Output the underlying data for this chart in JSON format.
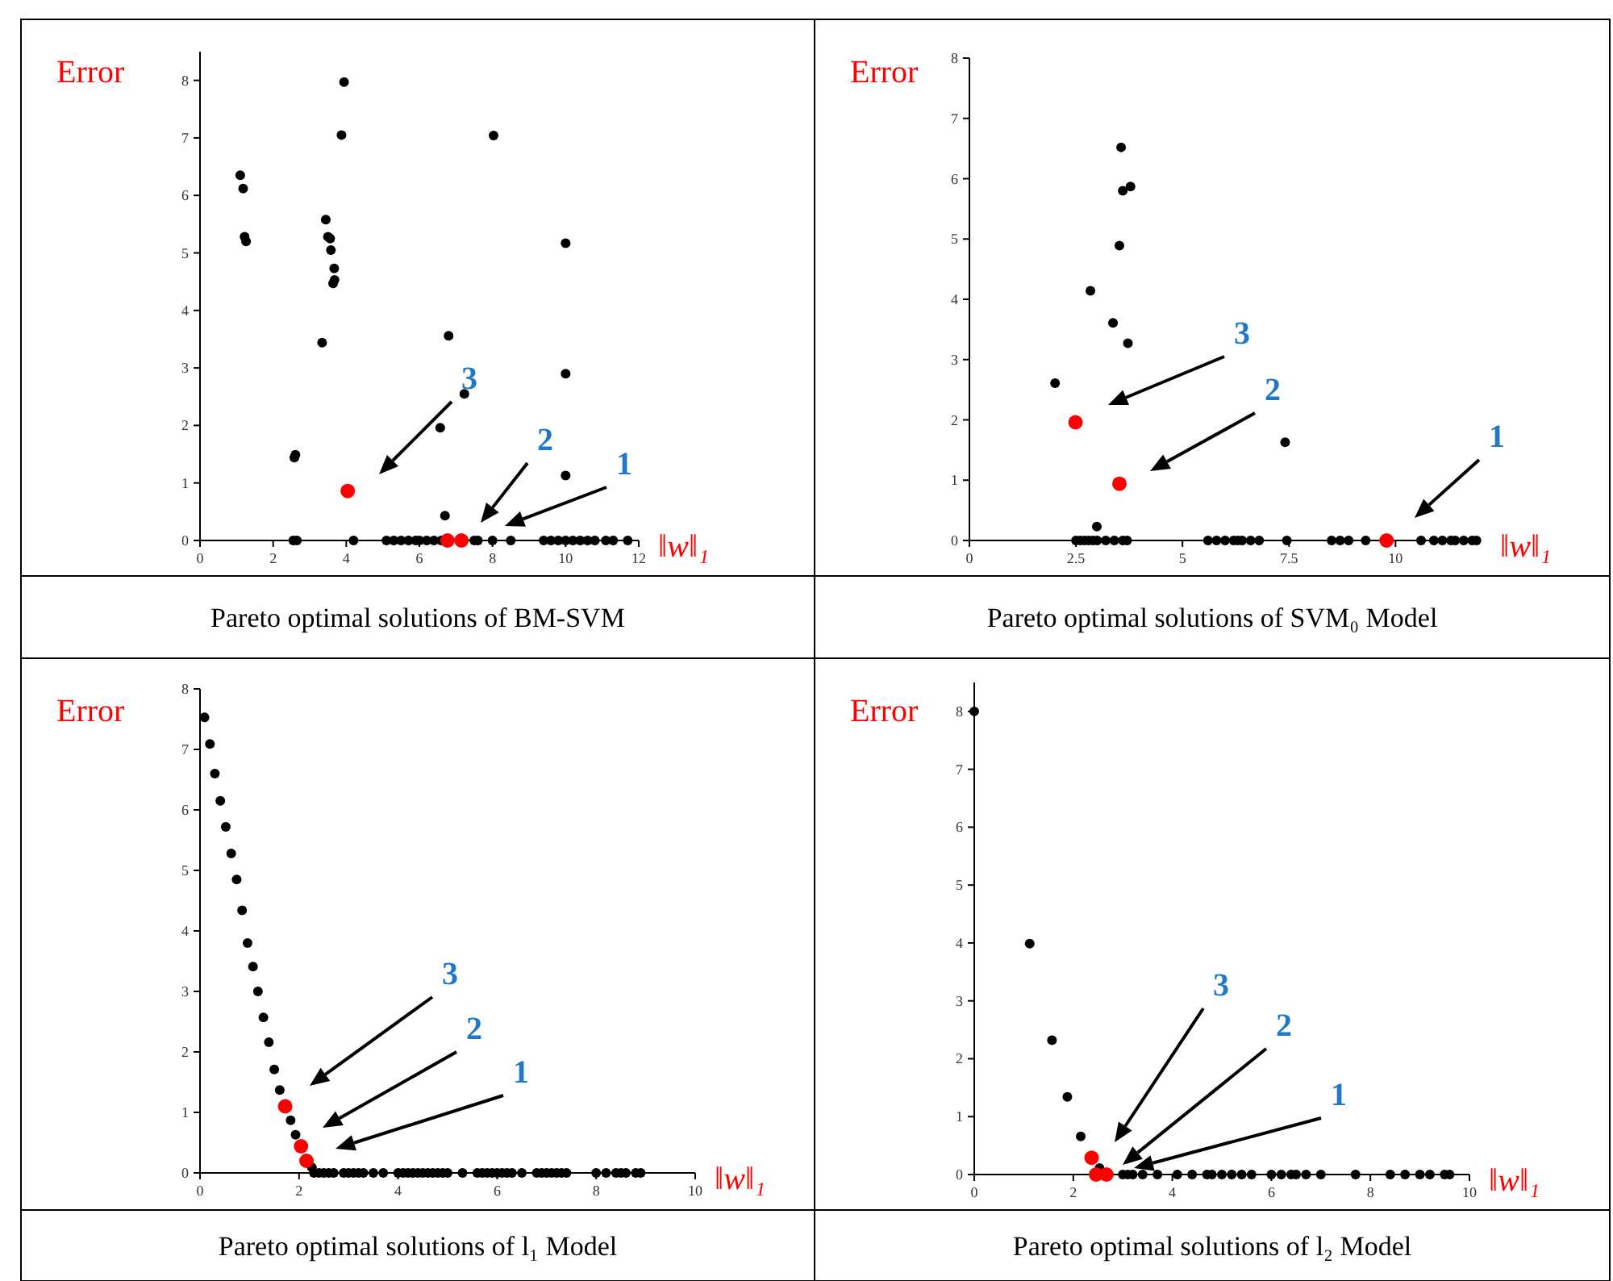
{
  "chart_data": [
    {
      "type": "scatter",
      "title": "Pareto optimal solutions of BM-SVM",
      "xlabel": "‖w‖₁",
      "ylabel": "Error",
      "xlim": [
        0,
        12
      ],
      "ylim": [
        0,
        8.5
      ],
      "xticks": [
        0,
        2,
        4,
        6,
        8,
        10,
        12
      ],
      "yticks": [
        0,
        1,
        2,
        3,
        4,
        5,
        6,
        7,
        8
      ],
      "marker": "circle",
      "grid": false,
      "series": [
        {
          "color": "#000000",
          "x": [
            1.1,
            1.18,
            1.22,
            1.26,
            3.94,
            3.87,
            8.03,
            3.44,
            3.5,
            3.56,
            3.58,
            3.67,
            3.68,
            3.64,
            3.34,
            6.8,
            7.23,
            6.57,
            2.61,
            2.58,
            10.0,
            10.0,
            10.0,
            6.7,
            2.55,
            2.65,
            4.2,
            5.1,
            5.3,
            5.5,
            5.7,
            5.9,
            6.0,
            6.2,
            6.4,
            6.6,
            7.5,
            7.6,
            8.0,
            8.5,
            9.4,
            9.6,
            9.8,
            10.0,
            10.2,
            10.4,
            10.6,
            10.8,
            11.1,
            11.3,
            11.7
          ],
          "values": [
            6.35,
            6.12,
            5.28,
            5.2,
            7.97,
            7.05,
            7.04,
            5.58,
            5.28,
            5.25,
            5.05,
            4.73,
            4.53,
            4.47,
            3.44,
            3.56,
            2.55,
            1.96,
            1.49,
            1.44,
            5.17,
            2.9,
            1.13,
            0.43,
            0,
            0,
            0,
            0,
            0,
            0,
            0,
            0,
            0,
            0,
            0,
            0,
            0,
            0,
            0,
            0,
            0,
            0,
            0,
            0,
            0,
            0,
            0,
            0,
            0,
            0,
            0
          ]
        },
        {
          "color": "#ff0000",
          "x": [
            4.04,
            6.77,
            7.15
          ],
          "values": [
            0.86,
            0,
            0
          ]
        }
      ],
      "annotations": [
        "3",
        "2",
        "1"
      ]
    },
    {
      "type": "scatter",
      "title": "Pareto optimal solutions of SVM₀ Model",
      "xlabel": "‖w‖₁",
      "ylabel": "Error",
      "xlim": [
        0,
        12
      ],
      "ylim": [
        0,
        8
      ],
      "xticks": [
        0,
        2.5,
        5,
        7.5,
        10
      ],
      "yticks": [
        0,
        1,
        2,
        3,
        4,
        5,
        6,
        7,
        8
      ],
      "marker": "circle",
      "grid": false,
      "series": [
        {
          "color": "#000000",
          "x": [
            3.56,
            3.6,
            3.78,
            3.52,
            2.84,
            3.37,
            3.72,
            2.01,
            7.41,
            2.99,
            2.5,
            2.6,
            2.7,
            2.8,
            2.9,
            3.0,
            3.2,
            3.4,
            3.6,
            3.7,
            5.6,
            5.8,
            6.0,
            6.2,
            6.3,
            6.4,
            6.6,
            6.8,
            7.45,
            8.5,
            8.7,
            8.9,
            9.3,
            10.6,
            10.9,
            11.1,
            11.3,
            11.4,
            11.6,
            11.8,
            11.9
          ],
          "values": [
            6.52,
            5.8,
            5.87,
            4.89,
            4.14,
            3.61,
            3.27,
            2.61,
            1.63,
            0.23,
            0,
            0,
            0,
            0,
            0,
            0,
            0,
            0,
            0,
            0,
            0,
            0,
            0,
            0,
            0,
            0,
            0,
            0,
            0,
            0,
            0,
            0,
            0,
            0,
            0,
            0,
            0,
            0,
            0,
            0,
            0
          ]
        },
        {
          "color": "#ff0000",
          "x": [
            2.49,
            3.52,
            9.79
          ],
          "values": [
            1.96,
            0.94,
            0
          ]
        }
      ],
      "annotations": [
        "3",
        "2",
        "1"
      ]
    },
    {
      "type": "scatter",
      "title": "Pareto optimal solutions of l₁ Model",
      "xlabel": "‖w‖₁",
      "ylabel": "Error",
      "xlim": [
        0,
        10
      ],
      "ylim": [
        0,
        8
      ],
      "xticks": [
        0,
        2,
        4,
        6,
        8,
        10
      ],
      "yticks": [
        0,
        1,
        2,
        3,
        4,
        5,
        6,
        7,
        8
      ],
      "marker": "circle",
      "grid": false,
      "series": [
        {
          "color": "#000000",
          "x": [
            0.09,
            0.2,
            0.3,
            0.41,
            0.52,
            0.63,
            0.74,
            0.85,
            0.96,
            1.07,
            1.17,
            1.28,
            1.39,
            1.5,
            1.61,
            1.83,
            1.93,
            2.26,
            2.3,
            2.4,
            2.5,
            2.6,
            2.7,
            2.9,
            3.0,
            3.1,
            3.2,
            3.3,
            3.5,
            3.7,
            4.0,
            4.1,
            4.2,
            4.3,
            4.4,
            4.5,
            4.6,
            4.7,
            4.8,
            4.9,
            5.0,
            5.3,
            5.6,
            5.7,
            5.8,
            5.9,
            6.0,
            6.1,
            6.2,
            6.3,
            6.5,
            6.8,
            6.9,
            7.0,
            7.1,
            7.2,
            7.3,
            7.4,
            8.0,
            8.2,
            8.4,
            8.5,
            8.6,
            8.8,
            8.9
          ],
          "values": [
            7.53,
            7.09,
            6.6,
            6.15,
            5.72,
            5.28,
            4.85,
            4.34,
            3.8,
            3.41,
            3.0,
            2.57,
            2.16,
            1.71,
            1.37,
            0.87,
            0.63,
            0.09,
            0,
            0,
            0,
            0,
            0,
            0,
            0,
            0,
            0,
            0,
            0,
            0,
            0,
            0,
            0,
            0,
            0,
            0,
            0,
            0,
            0,
            0,
            0,
            0,
            0,
            0,
            0,
            0,
            0,
            0,
            0,
            0,
            0,
            0,
            0,
            0,
            0,
            0,
            0,
            0,
            0,
            0,
            0,
            0,
            0,
            0,
            0
          ]
        },
        {
          "color": "#ff0000",
          "x": [
            1.72,
            2.04,
            2.15
          ],
          "values": [
            1.1,
            0.44,
            0.2
          ]
        }
      ],
      "annotations": [
        "3",
        "2",
        "1"
      ]
    },
    {
      "type": "scatter",
      "title": "Pareto optimal solutions of l₂ Model",
      "xlabel": "‖w‖₁",
      "ylabel": "Error",
      "xlim": [
        0,
        10
      ],
      "ylim": [
        0,
        8.5
      ],
      "xticks": [
        0,
        2,
        4,
        6,
        8,
        10
      ],
      "yticks": [
        0,
        1,
        2,
        3,
        4,
        5,
        6,
        7,
        8
      ],
      "marker": "circle",
      "grid": false,
      "series": [
        {
          "color": "#000000",
          "x": [
            0,
            1.12,
            1.57,
            1.88,
            2.15,
            2.53,
            3.0,
            3.1,
            3.2,
            3.4,
            3.7,
            4.1,
            4.4,
            4.7,
            4.8,
            5.0,
            5.2,
            5.4,
            5.6,
            6.0,
            6.2,
            6.4,
            6.5,
            6.7,
            7.0,
            7.7,
            8.4,
            8.7,
            9.0,
            9.2,
            9.5,
            9.6
          ],
          "values": [
            8,
            3.99,
            2.32,
            1.34,
            0.66,
            0.11,
            0,
            0,
            0,
            0,
            0,
            0,
            0,
            0,
            0,
            0,
            0,
            0,
            0,
            0,
            0,
            0,
            0,
            0,
            0,
            0,
            0,
            0,
            0,
            0,
            0,
            0
          ]
        },
        {
          "color": "#ff0000",
          "x": [
            2.37,
            2.46,
            2.67
          ],
          "values": [
            0.29,
            0,
            0
          ]
        }
      ],
      "annotations": [
        "3",
        "2",
        "1"
      ]
    }
  ]
}
